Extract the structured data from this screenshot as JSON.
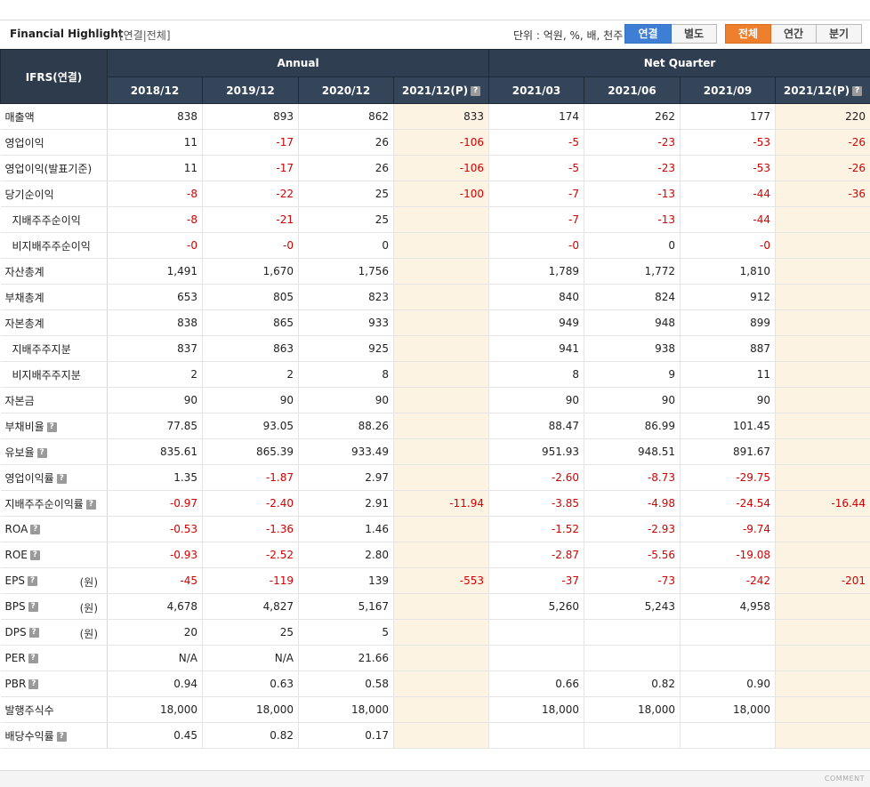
{
  "header": {
    "title": "Financial Highlight",
    "subtitle": "[연결|전체]",
    "unit_text": "단위 : 억원, %, 배, 천주",
    "consolidation_buttons": [
      "연결",
      "별도"
    ],
    "period_buttons": [
      "전체",
      "연간",
      "분기"
    ]
  },
  "table": {
    "corner": "IFRS(연결)",
    "group_annual": "Annual",
    "group_quarter": "Net Quarter",
    "columns": [
      "2018/12",
      "2019/12",
      "2020/12",
      "2021/12(P)",
      "2021/03",
      "2021/06",
      "2021/09",
      "2021/12(P)"
    ],
    "help_glyph": "?",
    "rows": [
      {
        "label": "매출액",
        "unit": "",
        "help": false,
        "indent": false,
        "values": [
          "838",
          "893",
          "862",
          "833",
          "174",
          "262",
          "177",
          "220"
        ]
      },
      {
        "label": "영업이익",
        "unit": "",
        "help": false,
        "indent": false,
        "values": [
          "11",
          "-17",
          "26",
          "-106",
          "-5",
          "-23",
          "-53",
          "-26"
        ]
      },
      {
        "label": "영업이익(발표기준)",
        "unit": "",
        "help": false,
        "indent": false,
        "values": [
          "11",
          "-17",
          "26",
          "-106",
          "-5",
          "-23",
          "-53",
          "-26"
        ]
      },
      {
        "label": "당기순이익",
        "unit": "",
        "help": false,
        "indent": false,
        "values": [
          "-8",
          "-22",
          "25",
          "-100",
          "-7",
          "-13",
          "-44",
          "-36"
        ]
      },
      {
        "label": "지배주주순이익",
        "unit": "",
        "help": false,
        "indent": true,
        "values": [
          "-8",
          "-21",
          "25",
          "",
          "-7",
          "-13",
          "-44",
          ""
        ]
      },
      {
        "label": "비지배주주순이익",
        "unit": "",
        "help": false,
        "indent": true,
        "values": [
          "-0",
          "-0",
          "0",
          "",
          "-0",
          "0",
          "-0",
          ""
        ]
      },
      {
        "label": "자산총계",
        "unit": "",
        "help": false,
        "indent": false,
        "values": [
          "1,491",
          "1,670",
          "1,756",
          "",
          "1,789",
          "1,772",
          "1,810",
          ""
        ]
      },
      {
        "label": "부채총계",
        "unit": "",
        "help": false,
        "indent": false,
        "values": [
          "653",
          "805",
          "823",
          "",
          "840",
          "824",
          "912",
          ""
        ]
      },
      {
        "label": "자본총계",
        "unit": "",
        "help": false,
        "indent": false,
        "values": [
          "838",
          "865",
          "933",
          "",
          "949",
          "948",
          "899",
          ""
        ]
      },
      {
        "label": "지배주주지분",
        "unit": "",
        "help": false,
        "indent": true,
        "values": [
          "837",
          "863",
          "925",
          "",
          "941",
          "938",
          "887",
          ""
        ]
      },
      {
        "label": "비지배주주지분",
        "unit": "",
        "help": false,
        "indent": true,
        "values": [
          "2",
          "2",
          "8",
          "",
          "8",
          "9",
          "11",
          ""
        ]
      },
      {
        "label": "자본금",
        "unit": "",
        "help": false,
        "indent": false,
        "values": [
          "90",
          "90",
          "90",
          "",
          "90",
          "90",
          "90",
          ""
        ]
      },
      {
        "label": "부채비율",
        "unit": "",
        "help": true,
        "indent": false,
        "values": [
          "77.85",
          "93.05",
          "88.26",
          "",
          "88.47",
          "86.99",
          "101.45",
          ""
        ]
      },
      {
        "label": "유보율",
        "unit": "",
        "help": true,
        "indent": false,
        "values": [
          "835.61",
          "865.39",
          "933.49",
          "",
          "951.93",
          "948.51",
          "891.67",
          ""
        ]
      },
      {
        "label": "영업이익률",
        "unit": "",
        "help": true,
        "indent": false,
        "values": [
          "1.35",
          "-1.87",
          "2.97",
          "",
          "-2.60",
          "-8.73",
          "-29.75",
          ""
        ]
      },
      {
        "label": "지배주주순이익률",
        "unit": "",
        "help": true,
        "indent": false,
        "values": [
          "-0.97",
          "-2.40",
          "2.91",
          "-11.94",
          "-3.85",
          "-4.98",
          "-24.54",
          "-16.44"
        ]
      },
      {
        "label": "ROA",
        "unit": "",
        "help": true,
        "indent": false,
        "values": [
          "-0.53",
          "-1.36",
          "1.46",
          "",
          "-1.52",
          "-2.93",
          "-9.74",
          ""
        ]
      },
      {
        "label": "ROE",
        "unit": "",
        "help": true,
        "indent": false,
        "values": [
          "-0.93",
          "-2.52",
          "2.80",
          "",
          "-2.87",
          "-5.56",
          "-19.08",
          ""
        ]
      },
      {
        "label": "EPS",
        "unit": "(원)",
        "help": true,
        "indent": false,
        "values": [
          "-45",
          "-119",
          "139",
          "-553",
          "-37",
          "-73",
          "-242",
          "-201"
        ]
      },
      {
        "label": "BPS",
        "unit": "(원)",
        "help": true,
        "indent": false,
        "values": [
          "4,678",
          "4,827",
          "5,167",
          "",
          "5,260",
          "5,243",
          "4,958",
          ""
        ]
      },
      {
        "label": "DPS",
        "unit": "(원)",
        "help": true,
        "indent": false,
        "values": [
          "20",
          "25",
          "5",
          "",
          "",
          "",
          "",
          ""
        ]
      },
      {
        "label": "PER",
        "unit": "",
        "help": true,
        "indent": false,
        "values": [
          "N/A",
          "N/A",
          "21.66",
          "",
          "",
          "",
          "",
          ""
        ]
      },
      {
        "label": "PBR",
        "unit": "",
        "help": true,
        "indent": false,
        "values": [
          "0.94",
          "0.63",
          "0.58",
          "",
          "0.66",
          "0.82",
          "0.90",
          ""
        ]
      },
      {
        "label": "발행주식수",
        "unit": "",
        "help": false,
        "indent": false,
        "values": [
          "18,000",
          "18,000",
          "18,000",
          "",
          "18,000",
          "18,000",
          "18,000",
          ""
        ]
      },
      {
        "label": "배당수익률",
        "unit": "",
        "help": true,
        "indent": false,
        "values": [
          "0.45",
          "0.82",
          "0.17",
          "",
          "",
          "",
          "",
          ""
        ]
      }
    ]
  },
  "footer": {
    "comment": "COMMENT"
  },
  "colors": {
    "header_bg": "#2e3b4c",
    "estimate_bg": "#fdf3e3",
    "negative": "#d20000",
    "active_blue": "#3e7ed4",
    "active_orange": "#ee7f2c"
  }
}
